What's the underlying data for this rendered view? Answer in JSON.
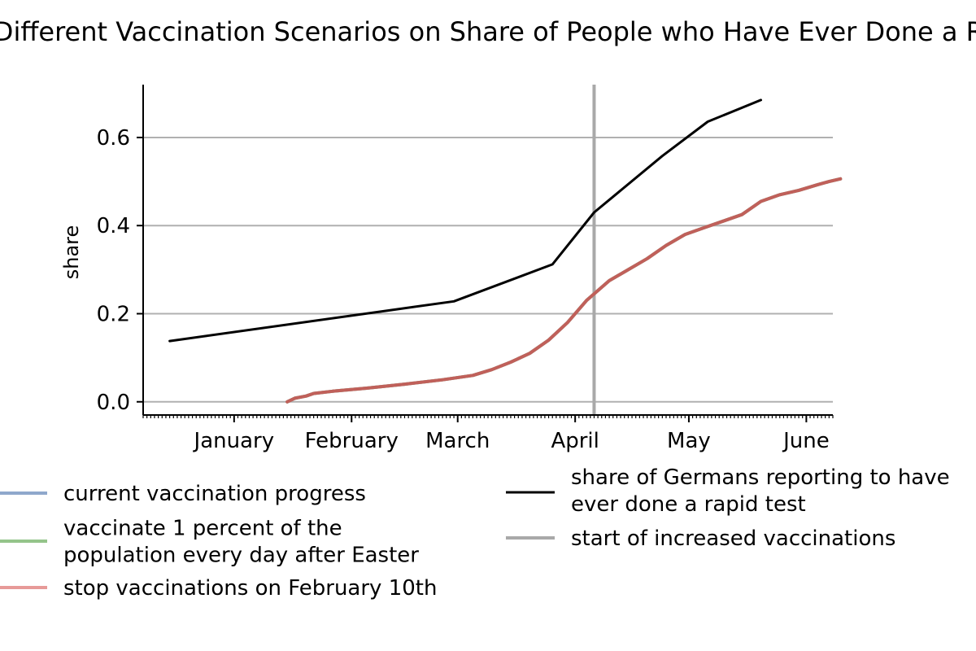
{
  "chart_data": {
    "type": "line",
    "title": "Effect of Different Vaccination Scenarios on Share of People who Have Ever Done a Rapid Test",
    "xlabel": "",
    "ylabel": "share",
    "x_tick_labels": [
      "January",
      "February",
      "March",
      "April",
      "May",
      "June"
    ],
    "x_tick_dates": [
      "2021-01-01",
      "2021-02-01",
      "2021-03-01",
      "2021-04-01",
      "2021-05-01",
      "2021-06-01"
    ],
    "xlim": [
      "2020-12-08",
      "2021-06-08"
    ],
    "ylim": [
      -0.03,
      0.72
    ],
    "y_ticks": [
      0.0,
      0.2,
      0.4,
      0.6
    ],
    "y_tick_labels": [
      "0.0",
      "0.2",
      "0.4",
      "0.6"
    ],
    "grid": "horizontal",
    "legend_position": "below",
    "vline": {
      "date": "2021-04-06",
      "label": "start of increased vaccinations",
      "color": "#a9a9a9"
    },
    "series": [
      {
        "name": "current vaccination progress",
        "color": "#8fa8cc",
        "points": [
          [
            "2021-01-15",
            0.0
          ],
          [
            "2021-01-17",
            0.008
          ],
          [
            "2021-01-20",
            0.013
          ],
          [
            "2021-01-22",
            0.019
          ],
          [
            "2021-01-27",
            0.024
          ],
          [
            "2021-02-05",
            0.031
          ],
          [
            "2021-02-15",
            0.04
          ],
          [
            "2021-02-25",
            0.05
          ],
          [
            "2021-03-05",
            0.06
          ],
          [
            "2021-03-10",
            0.073
          ],
          [
            "2021-03-15",
            0.09
          ],
          [
            "2021-03-20",
            0.11
          ],
          [
            "2021-03-25",
            0.14
          ],
          [
            "2021-03-30",
            0.18
          ],
          [
            "2021-04-04",
            0.23
          ],
          [
            "2021-04-10",
            0.275
          ],
          [
            "2021-04-15",
            0.3
          ],
          [
            "2021-04-20",
            0.325
          ],
          [
            "2021-04-25",
            0.355
          ],
          [
            "2021-04-30",
            0.38
          ],
          [
            "2021-05-05",
            0.395
          ],
          [
            "2021-05-10",
            0.41
          ],
          [
            "2021-05-15",
            0.425
          ],
          [
            "2021-05-20",
            0.455
          ],
          [
            "2021-05-25",
            0.47
          ],
          [
            "2021-05-30",
            0.48
          ],
          [
            "2021-06-04",
            0.493
          ],
          [
            "2021-06-07",
            0.5
          ],
          [
            "2021-06-10",
            0.506
          ]
        ]
      },
      {
        "name": "vaccinate 1 percent of the population every day after Easter",
        "color": "#94c48a",
        "points": [
          [
            "2021-01-15",
            0.0
          ],
          [
            "2021-01-17",
            0.008
          ],
          [
            "2021-01-20",
            0.013
          ],
          [
            "2021-01-22",
            0.019
          ],
          [
            "2021-01-27",
            0.024
          ],
          [
            "2021-02-05",
            0.031
          ],
          [
            "2021-02-15",
            0.04
          ],
          [
            "2021-02-25",
            0.05
          ],
          [
            "2021-03-05",
            0.06
          ],
          [
            "2021-03-10",
            0.073
          ],
          [
            "2021-03-15",
            0.09
          ],
          [
            "2021-03-20",
            0.11
          ],
          [
            "2021-03-25",
            0.14
          ],
          [
            "2021-03-30",
            0.18
          ],
          [
            "2021-04-04",
            0.23
          ],
          [
            "2021-04-10",
            0.275
          ],
          [
            "2021-04-15",
            0.3
          ],
          [
            "2021-04-20",
            0.325
          ],
          [
            "2021-04-25",
            0.355
          ],
          [
            "2021-04-30",
            0.38
          ],
          [
            "2021-05-05",
            0.395
          ],
          [
            "2021-05-10",
            0.41
          ],
          [
            "2021-05-15",
            0.425
          ],
          [
            "2021-05-20",
            0.455
          ],
          [
            "2021-05-25",
            0.47
          ],
          [
            "2021-05-30",
            0.48
          ],
          [
            "2021-06-04",
            0.493
          ],
          [
            "2021-06-07",
            0.5
          ],
          [
            "2021-06-10",
            0.506
          ]
        ]
      },
      {
        "name": "stop vaccinations on February 10th",
        "color": "#c0605a",
        "legend_color": "#e79a98",
        "points": [
          [
            "2021-01-15",
            0.0
          ],
          [
            "2021-01-17",
            0.008
          ],
          [
            "2021-01-20",
            0.013
          ],
          [
            "2021-01-22",
            0.019
          ],
          [
            "2021-01-27",
            0.024
          ],
          [
            "2021-02-05",
            0.031
          ],
          [
            "2021-02-15",
            0.04
          ],
          [
            "2021-02-25",
            0.05
          ],
          [
            "2021-03-05",
            0.06
          ],
          [
            "2021-03-10",
            0.073
          ],
          [
            "2021-03-15",
            0.09
          ],
          [
            "2021-03-20",
            0.11
          ],
          [
            "2021-03-25",
            0.14
          ],
          [
            "2021-03-30",
            0.18
          ],
          [
            "2021-04-04",
            0.23
          ],
          [
            "2021-04-10",
            0.275
          ],
          [
            "2021-04-15",
            0.3
          ],
          [
            "2021-04-20",
            0.325
          ],
          [
            "2021-04-25",
            0.355
          ],
          [
            "2021-04-30",
            0.38
          ],
          [
            "2021-05-05",
            0.395
          ],
          [
            "2021-05-10",
            0.41
          ],
          [
            "2021-05-15",
            0.425
          ],
          [
            "2021-05-20",
            0.455
          ],
          [
            "2021-05-25",
            0.47
          ],
          [
            "2021-05-30",
            0.48
          ],
          [
            "2021-06-04",
            0.493
          ],
          [
            "2021-06-07",
            0.5
          ],
          [
            "2021-06-10",
            0.506
          ]
        ]
      },
      {
        "name": "share of Germans reporting to have ever done a rapid test",
        "color": "#000000",
        "points": [
          [
            "2020-12-15",
            0.138
          ],
          [
            "2021-02-28",
            0.228
          ],
          [
            "2021-03-26",
            0.312
          ],
          [
            "2021-04-06",
            0.43
          ],
          [
            "2021-04-24",
            0.558
          ],
          [
            "2021-05-06",
            0.636
          ],
          [
            "2021-05-20",
            0.685
          ]
        ]
      }
    ]
  }
}
